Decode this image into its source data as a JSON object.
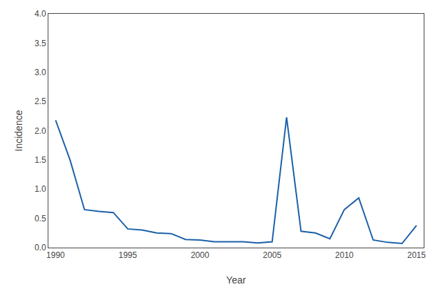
{
  "chart_data": {
    "type": "line",
    "x": [
      1990,
      1991,
      1992,
      1993,
      1994,
      1995,
      1996,
      1997,
      1998,
      1999,
      2000,
      2001,
      2002,
      2003,
      2004,
      2005,
      2006,
      2007,
      2008,
      2009,
      2010,
      2011,
      2012,
      2013,
      2014,
      2015
    ],
    "values": [
      2.18,
      1.5,
      0.65,
      0.62,
      0.6,
      0.32,
      0.3,
      0.25,
      0.24,
      0.14,
      0.13,
      0.1,
      0.1,
      0.1,
      0.08,
      0.1,
      2.23,
      0.28,
      0.25,
      0.15,
      0.65,
      0.85,
      0.13,
      0.09,
      0.07,
      0.38
    ],
    "color": "#1a5fa8",
    "xlabel": "Year",
    "ylabel": "Incidence",
    "xlim": [
      1989.5,
      2015.5
    ],
    "ylim": [
      0.0,
      4.0
    ],
    "xticks": [
      1990,
      1995,
      2000,
      2005,
      2010,
      2015
    ],
    "yticks": [
      {
        "value": 0.0,
        "label": "0.0"
      },
      0.5,
      {
        "value": 1.0,
        "label": "1.0"
      },
      1.5,
      {
        "value": 2.0,
        "label": "2.0"
      },
      2.5,
      {
        "value": 3.0,
        "label": "3.0"
      },
      3.5,
      {
        "value": 4.0,
        "label": "4.0"
      }
    ],
    "grid": false
  }
}
